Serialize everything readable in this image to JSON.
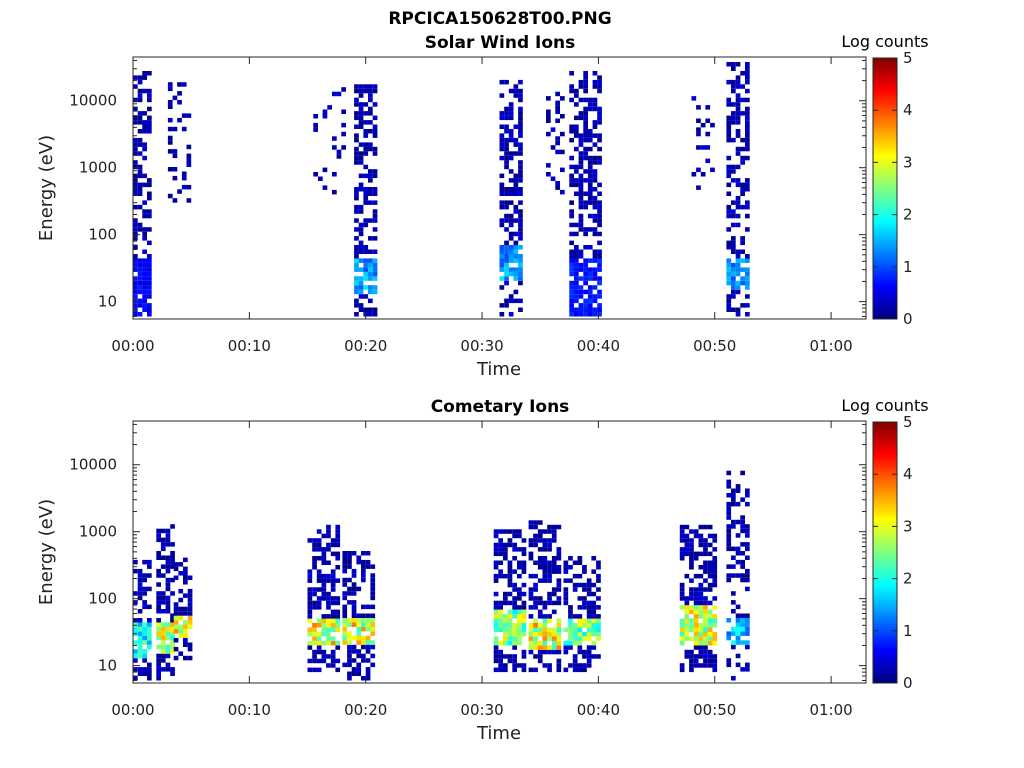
{
  "figure_title": "RPCICA150628T00.PNG",
  "colorbar": {
    "label": "Log counts",
    "ticks": [
      "0",
      "1",
      "2",
      "3",
      "4",
      "5"
    ],
    "range": [
      0,
      5
    ],
    "colormap": [
      "#00007f",
      "#0000ff",
      "#007fff",
      "#00ffff",
      "#7fff7f",
      "#ffff00",
      "#ff7f00",
      "#ff0000",
      "#7f0000"
    ]
  },
  "chart_data": [
    {
      "type": "heatmap",
      "title": "Solar Wind Ions",
      "xlabel": "Time",
      "ylabel": "Energy (eV)",
      "yscale": "log",
      "ylim": [
        5.5,
        45000
      ],
      "xlim_minutes": [
        0,
        63
      ],
      "x_tick_labels": [
        "00:00",
        "00:10",
        "00:20",
        "00:30",
        "00:40",
        "00:50",
        "01:00"
      ],
      "y_tick_labels": [
        "10",
        "100",
        "1000",
        "10000"
      ],
      "bursts": [
        {
          "t_start": "00:00",
          "t_end": "00:01.5",
          "e_min": 6,
          "e_max": 25000,
          "core_e": [
            6,
            40
          ],
          "core_level": 0.8,
          "density": 0.55
        },
        {
          "t_start": "00:03",
          "t_end": "00:05",
          "e_min": 300,
          "e_max": 18000,
          "density": 0.25
        },
        {
          "t_start": "00:15.5",
          "t_end": "00:18",
          "e_min": 400,
          "e_max": 18000,
          "density": 0.15
        },
        {
          "t_start": "00:19",
          "t_end": "00:21",
          "e_min": 6,
          "e_max": 16000,
          "core_e": [
            12,
            40
          ],
          "core_level": 1.8,
          "density": 0.55
        },
        {
          "t_start": "00:31.5",
          "t_end": "00:33.5",
          "e_min": 6,
          "e_max": 18000,
          "core_e": [
            20,
            60
          ],
          "core_level": 1.8,
          "density": 0.5
        },
        {
          "t_start": "00:35.5",
          "t_end": "00:37",
          "e_min": 400,
          "e_max": 12000,
          "density": 0.2
        },
        {
          "t_start": "00:37.5",
          "t_end": "00:40",
          "e_min": 6,
          "e_max": 25000,
          "core_e": [
            6,
            40
          ],
          "core_level": 0.9,
          "density": 0.55
        },
        {
          "t_start": "00:48",
          "t_end": "00:50",
          "e_min": 400,
          "e_max": 15000,
          "density": 0.2
        },
        {
          "t_start": "00:51",
          "t_end": "00:53",
          "e_min": 6,
          "e_max": 35000,
          "core_e": [
            15,
            40
          ],
          "core_level": 1.6,
          "density": 0.5
        }
      ]
    },
    {
      "type": "heatmap",
      "title": "Cometary Ions",
      "xlabel": "Time",
      "ylabel": "Energy (eV)",
      "yscale": "log",
      "ylim": [
        5.5,
        45000
      ],
      "xlim_minutes": [
        0,
        63
      ],
      "x_tick_labels": [
        "00:00",
        "00:10",
        "00:20",
        "00:30",
        "00:40",
        "00:50",
        "01:00"
      ],
      "y_tick_labels": [
        "10",
        "100",
        "1000",
        "10000"
      ],
      "bursts": [
        {
          "t_start": "00:00",
          "t_end": "00:01.5",
          "e_min": 6,
          "e_max": 350,
          "core_e": [
            12,
            40
          ],
          "core_level": 2.5,
          "density": 0.5
        },
        {
          "t_start": "00:02",
          "t_end": "00:03.5",
          "e_min": 6,
          "e_max": 1200,
          "core_e": [
            15,
            40
          ],
          "core_level": 3.6,
          "density": 0.55
        },
        {
          "t_start": "00:03.5",
          "t_end": "00:05",
          "e_min": 12,
          "e_max": 400,
          "core_e": [
            25,
            50
          ],
          "core_level": 3.8,
          "density": 0.5
        },
        {
          "t_start": "00:15",
          "t_end": "00:17.5",
          "e_min": 8,
          "e_max": 1100,
          "core_e": [
            20,
            50
          ],
          "core_level": 3.8,
          "density": 0.55
        },
        {
          "t_start": "00:18",
          "t_end": "00:20.5",
          "e_min": 6,
          "e_max": 500,
          "core_e": [
            20,
            50
          ],
          "core_level": 3.8,
          "density": 0.55
        },
        {
          "t_start": "00:31",
          "t_end": "00:33.5",
          "e_min": 8,
          "e_max": 1000,
          "core_e": [
            20,
            60
          ],
          "core_level": 3.3,
          "density": 0.55
        },
        {
          "t_start": "00:34",
          "t_end": "00:36.5",
          "e_min": 8,
          "e_max": 1300,
          "core_e": [
            15,
            50
          ],
          "core_level": 3.8,
          "density": 0.55
        },
        {
          "t_start": "00:37",
          "t_end": "00:40",
          "e_min": 8,
          "e_max": 400,
          "core_e": [
            20,
            50
          ],
          "core_level": 3.2,
          "density": 0.55
        },
        {
          "t_start": "00:47",
          "t_end": "00:50",
          "e_min": 8,
          "e_max": 1100,
          "core_e": [
            20,
            70
          ],
          "core_level": 3.6,
          "density": 0.55
        },
        {
          "t_start": "00:51",
          "t_end": "00:53",
          "e_min": 6,
          "e_max": 7000,
          "core_e": [
            20,
            50
          ],
          "core_level": 2.0,
          "density": 0.4
        }
      ]
    }
  ]
}
